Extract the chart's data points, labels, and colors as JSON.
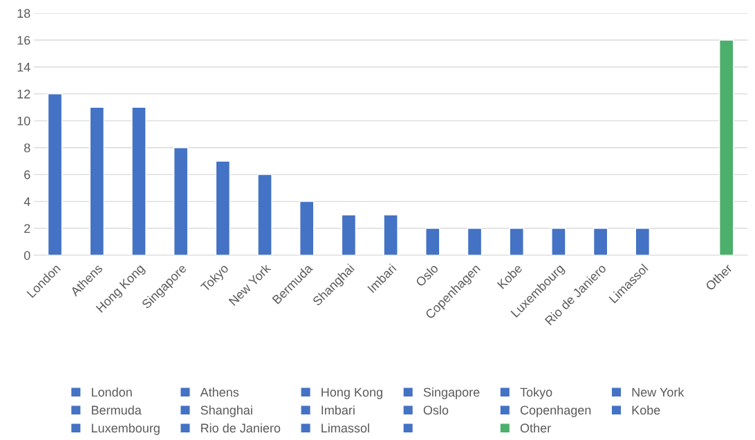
{
  "chart_data": {
    "type": "bar",
    "categories": [
      "London",
      "Athens",
      "Hong Kong",
      "Singapore",
      "Tokyo",
      "New York",
      "Bermuda",
      "Shanghai",
      "Imbari",
      "Oslo",
      "Copenhagen",
      "Kobe",
      "Luxembourg",
      "Rio de Janiero",
      "Limassol",
      null,
      "Other"
    ],
    "series": [
      {
        "name": "London",
        "color": "#4472c4",
        "values": [
          12,
          null,
          null,
          null,
          null,
          null,
          null,
          null,
          null,
          null,
          null,
          null,
          null,
          null,
          null,
          null,
          null
        ]
      },
      {
        "name": "Athens",
        "color": "#4472c4",
        "values": [
          null,
          11,
          null,
          null,
          null,
          null,
          null,
          null,
          null,
          null,
          null,
          null,
          null,
          null,
          null,
          null,
          null
        ]
      },
      {
        "name": "Hong Kong",
        "color": "#4472c4",
        "values": [
          null,
          null,
          11,
          null,
          null,
          null,
          null,
          null,
          null,
          null,
          null,
          null,
          null,
          null,
          null,
          null,
          null
        ]
      },
      {
        "name": "Singapore",
        "color": "#4472c4",
        "values": [
          null,
          null,
          null,
          8,
          null,
          null,
          null,
          null,
          null,
          null,
          null,
          null,
          null,
          null,
          null,
          null,
          null
        ]
      },
      {
        "name": "Tokyo",
        "color": "#4472c4",
        "values": [
          null,
          null,
          null,
          null,
          7,
          null,
          null,
          null,
          null,
          null,
          null,
          null,
          null,
          null,
          null,
          null,
          null
        ]
      },
      {
        "name": "New York",
        "color": "#4472c4",
        "values": [
          null,
          null,
          null,
          null,
          null,
          6,
          null,
          null,
          null,
          null,
          null,
          null,
          null,
          null,
          null,
          null,
          null
        ]
      },
      {
        "name": "Bermuda",
        "color": "#4472c4",
        "values": [
          null,
          null,
          null,
          null,
          null,
          null,
          4,
          null,
          null,
          null,
          null,
          null,
          null,
          null,
          null,
          null,
          null
        ]
      },
      {
        "name": "Shanghai",
        "color": "#4472c4",
        "values": [
          null,
          null,
          null,
          null,
          null,
          null,
          null,
          3,
          null,
          null,
          null,
          null,
          null,
          null,
          null,
          null,
          null
        ]
      },
      {
        "name": "Imbari",
        "color": "#4472c4",
        "values": [
          null,
          null,
          null,
          null,
          null,
          null,
          null,
          null,
          3,
          null,
          null,
          null,
          null,
          null,
          null,
          null,
          null
        ]
      },
      {
        "name": "Oslo",
        "color": "#4472c4",
        "values": [
          null,
          null,
          null,
          null,
          null,
          null,
          null,
          null,
          null,
          2,
          null,
          null,
          null,
          null,
          null,
          null,
          null
        ]
      },
      {
        "name": "Copenhagen",
        "color": "#4472c4",
        "values": [
          null,
          null,
          null,
          null,
          null,
          null,
          null,
          null,
          null,
          null,
          2,
          null,
          null,
          null,
          null,
          null,
          null
        ]
      },
      {
        "name": "Kobe",
        "color": "#4472c4",
        "values": [
          null,
          null,
          null,
          null,
          null,
          null,
          null,
          null,
          null,
          null,
          null,
          2,
          null,
          null,
          null,
          null,
          null
        ]
      },
      {
        "name": "Luxembourg",
        "color": "#4472c4",
        "values": [
          null,
          null,
          null,
          null,
          null,
          null,
          null,
          null,
          null,
          null,
          null,
          null,
          2,
          null,
          null,
          null,
          null
        ]
      },
      {
        "name": "Rio de Janiero",
        "color": "#4472c4",
        "values": [
          null,
          null,
          null,
          null,
          null,
          null,
          null,
          null,
          null,
          null,
          null,
          null,
          null,
          2,
          null,
          null,
          null
        ]
      },
      {
        "name": "Limassol",
        "color": "#4472c4",
        "values": [
          null,
          null,
          null,
          null,
          null,
          null,
          null,
          null,
          null,
          null,
          null,
          null,
          null,
          null,
          2,
          null,
          null
        ]
      },
      {
        "color": "#4472c4",
        "values": [
          null,
          null,
          null,
          null,
          null,
          null,
          null,
          null,
          null,
          null,
          null,
          null,
          null,
          null,
          null,
          null,
          null
        ]
      },
      {
        "name": "Other",
        "color": "#4caf6b",
        "values": [
          null,
          null,
          null,
          null,
          null,
          null,
          null,
          null,
          null,
          null,
          null,
          null,
          null,
          null,
          null,
          null,
          16
        ]
      }
    ],
    "stacked": true,
    "ylim": [
      0,
      18
    ],
    "yticks": [
      0,
      2,
      4,
      6,
      8,
      10,
      12,
      14,
      16,
      18
    ],
    "grid": "y",
    "legend": "bottom"
  }
}
